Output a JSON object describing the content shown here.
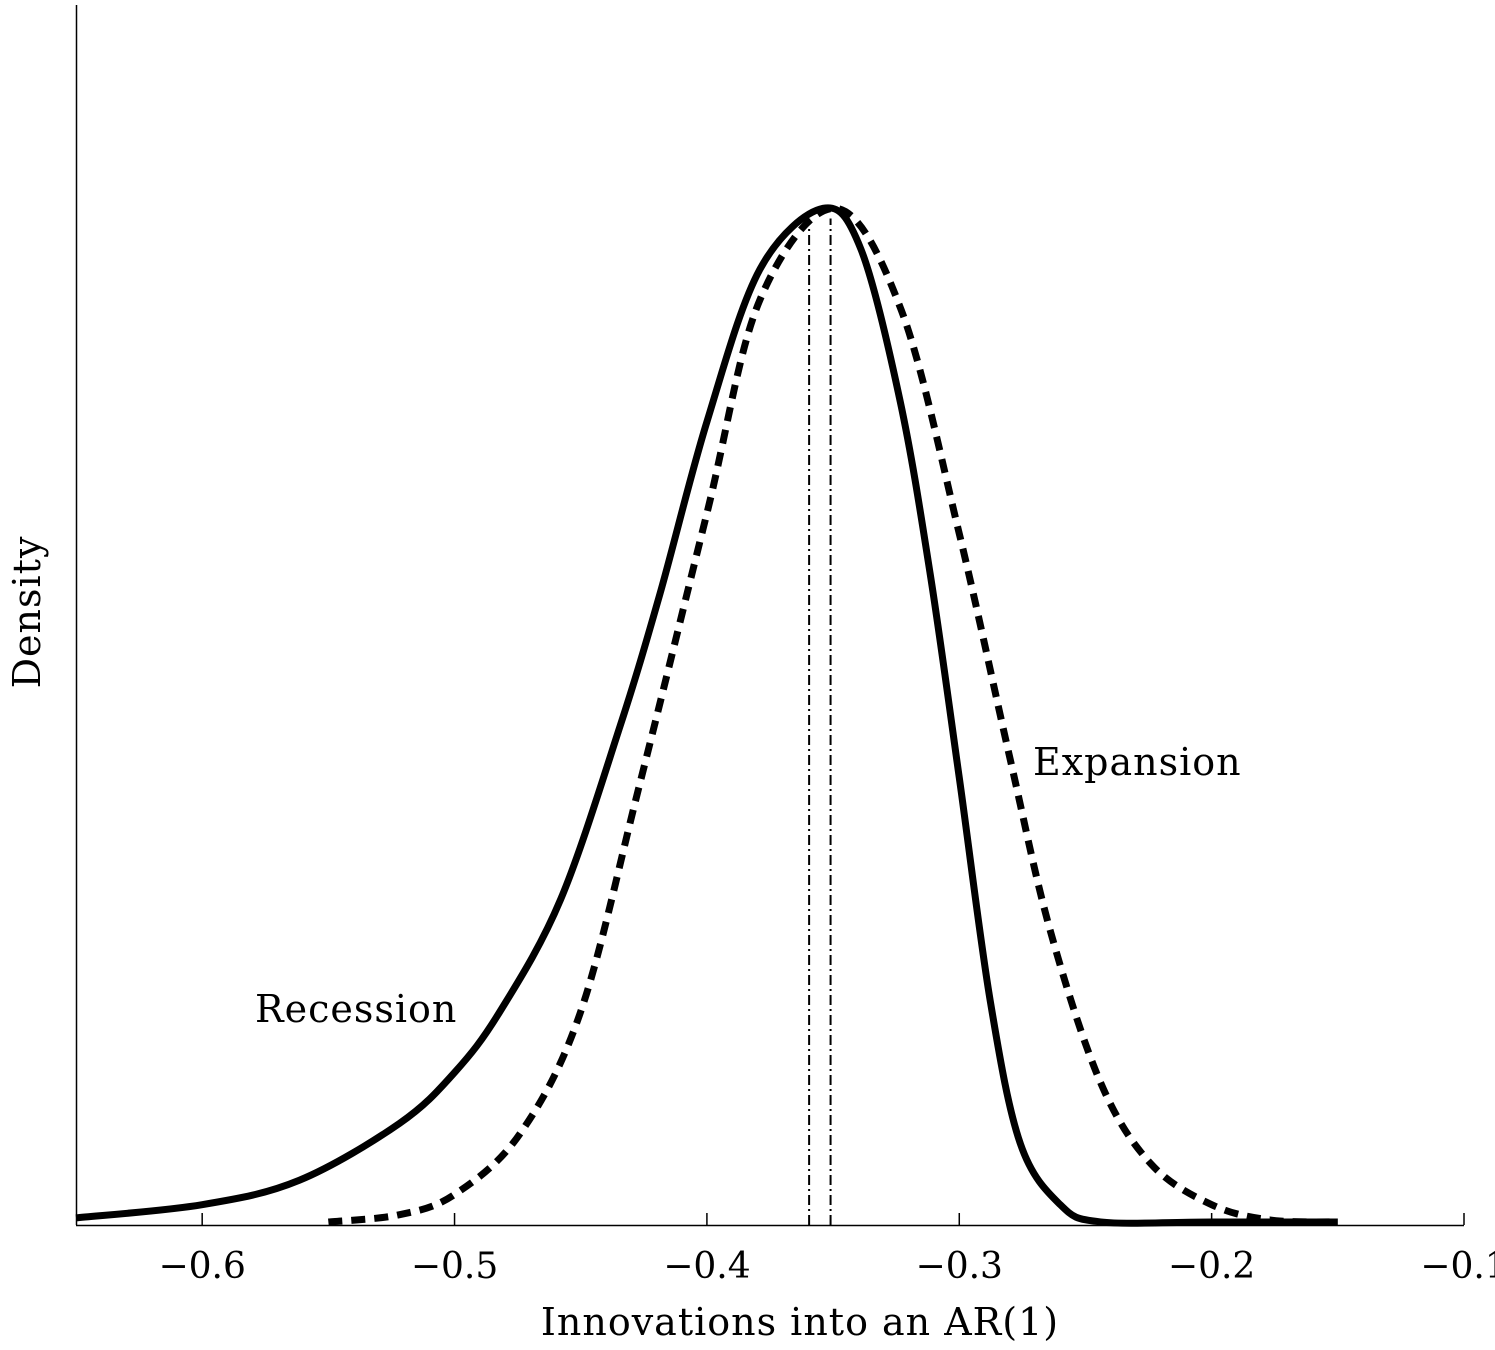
{
  "chart_data": {
    "type": "line",
    "title": "",
    "xlabel": "Innovations into an AR(1)",
    "ylabel": "Density",
    "xlim": [
      -0.65,
      -0.1
    ],
    "ylim": [
      0,
      1.2
    ],
    "x_ticks": [
      -0.6,
      -0.5,
      -0.4,
      -0.3,
      -0.2,
      -0.1
    ],
    "x_tick_labels": [
      "−0.6",
      "−0.5",
      "−0.4",
      "−0.3",
      "−0.2",
      "−0.1"
    ],
    "y_ticks_shown": false,
    "grid": false,
    "legend": "none",
    "series": [
      {
        "name": "Recession",
        "style": "solid",
        "color": "#000000",
        "x": [
          -0.65,
          -0.6,
          -0.5615,
          -0.5218,
          -0.5,
          -0.482,
          -0.458,
          -0.4345,
          -0.4187,
          -0.4,
          -0.379,
          -0.354,
          -0.339,
          -0.3234,
          -0.3115,
          -0.3,
          -0.2877,
          -0.2758,
          -0.26,
          -0.244,
          -0.2,
          -0.15
        ],
        "y": [
          0.007,
          0.02,
          0.044,
          0.1,
          0.15,
          0.21,
          0.32,
          0.49,
          0.62,
          0.79,
          0.94,
          1.0,
          0.96,
          0.81,
          0.64,
          0.44,
          0.22,
          0.08,
          0.02,
          0.003,
          0.0,
          0.0
        ]
      },
      {
        "name": "Expansion",
        "style": "dashed",
        "color": "#000000",
        "x": [
          -0.55,
          -0.522,
          -0.5,
          -0.474,
          -0.45,
          -0.427,
          -0.4,
          -0.379,
          -0.349,
          -0.323,
          -0.3,
          -0.28,
          -0.264,
          -0.244,
          -0.224,
          -0.2,
          -0.177,
          -0.15
        ],
        "y": [
          0.001,
          0.01,
          0.03,
          0.09,
          0.21,
          0.43,
          0.7,
          0.91,
          1.0,
          0.9,
          0.68,
          0.46,
          0.29,
          0.14,
          0.06,
          0.02,
          0.005,
          0.0
        ]
      }
    ],
    "vertical_lines": [
      {
        "x": -0.3595,
        "style": "dash-dot",
        "top": 0.99
      },
      {
        "x": -0.351,
        "style": "dash-dot",
        "top": 0.99
      }
    ],
    "annotations": [
      {
        "text": "Recession",
        "x": -0.58,
        "y": 0.21
      },
      {
        "text": "Expansion",
        "x": -0.272,
        "y": 0.455
      }
    ]
  }
}
